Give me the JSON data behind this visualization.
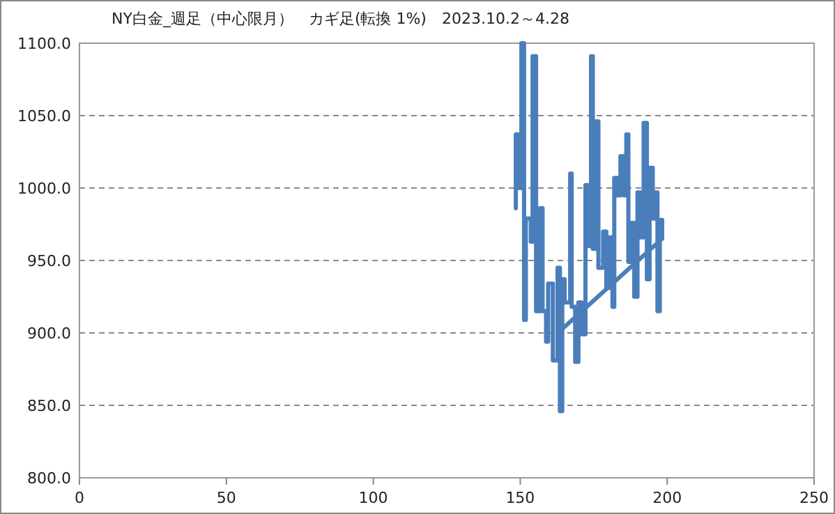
{
  "chart_data": {
    "type": "line",
    "title": "NY白金_週足（中心限月）　カギ足(転換 1%)　2023.10.2～4.28",
    "xlim": [
      0,
      250
    ],
    "xticks": [
      0,
      50,
      100,
      150,
      200,
      250
    ],
    "ylim": [
      800,
      1100
    ],
    "yticks": [
      {
        "value": 800,
        "label": "800.0"
      },
      {
        "value": 850,
        "label": "850.0"
      },
      {
        "value": 900,
        "label": "900.0"
      },
      {
        "value": 950,
        "label": "950.0"
      },
      {
        "value": 1000,
        "label": "1000.0"
      },
      {
        "value": 1050,
        "label": "1050.0"
      },
      {
        "value": 1100,
        "label": "1100.0"
      }
    ],
    "grid": "y",
    "marker": "none",
    "line_style": "solid",
    "series": [
      {
        "color": "#4a7ebb",
        "x": [
          148.5,
          148.5,
          149.4,
          149.4,
          150.4,
          150.4,
          151.3,
          151.3,
          151.9,
          151.9,
          153.6,
          153.6,
          154.2,
          154.2,
          155.4,
          155.4,
          156.7,
          156.7,
          157.6,
          157.6,
          158.8,
          158.8,
          159.5,
          159.5,
          161.1,
          161.1,
          162.7,
          162.7,
          163.5,
          163.5,
          164.3,
          164.3,
          165.1,
          165.1,
          167.0,
          167.0,
          167.5,
          167.5,
          168.7,
          168.7,
          169.8,
          169.8,
          170.9,
          170.9,
          172.2,
          172.2,
          173.0,
          173.0,
          174.1,
          174.1,
          174.7,
          174.7,
          175.7,
          175.7,
          176.6,
          176.6,
          178.2,
          178.2,
          179.3,
          179.3,
          180.4,
          180.4,
          181.4,
          181.4,
          182.0,
          182.0,
          183.0,
          183.0,
          184.1,
          184.1,
          185.2,
          185.2,
          186.1,
          186.1,
          186.8,
          186.8,
          187.7,
          187.7,
          188.8,
          188.8,
          189.9,
          189.9,
          190.8,
          190.8,
          192.0,
          192.0,
          193.1,
          193.1,
          194.0,
          194.0,
          195.1,
          195.1,
          195.9,
          195.9,
          196.7,
          196.7,
          197.5,
          197.5,
          198.3,
          198.3,
          163.9
        ],
        "values": [
          986,
          1037,
          1037,
          1000,
          1000,
          1100,
          1100,
          909,
          909,
          979,
          979,
          963,
          963,
          1091,
          1091,
          915,
          915,
          986,
          986,
          915,
          915,
          894,
          894,
          934,
          934,
          881,
          881,
          945,
          945,
          846,
          846,
          937,
          937,
          921,
          921,
          1010,
          1010,
          918,
          918,
          880,
          880,
          921,
          921,
          899,
          899,
          1002,
          1002,
          960,
          960,
          1091,
          1091,
          958,
          958,
          1046,
          1046,
          945,
          945,
          970,
          970,
          931,
          931,
          966,
          966,
          918,
          918,
          1007,
          1007,
          995,
          995,
          1022,
          1022,
          995,
          995,
          1037,
          1037,
          949,
          949,
          976,
          976,
          925,
          925,
          997,
          997,
          966,
          966,
          1045,
          1045,
          937,
          937,
          1014,
          1014,
          979,
          979,
          997,
          997,
          915,
          915,
          978,
          978,
          965,
          902
        ]
      }
    ]
  }
}
